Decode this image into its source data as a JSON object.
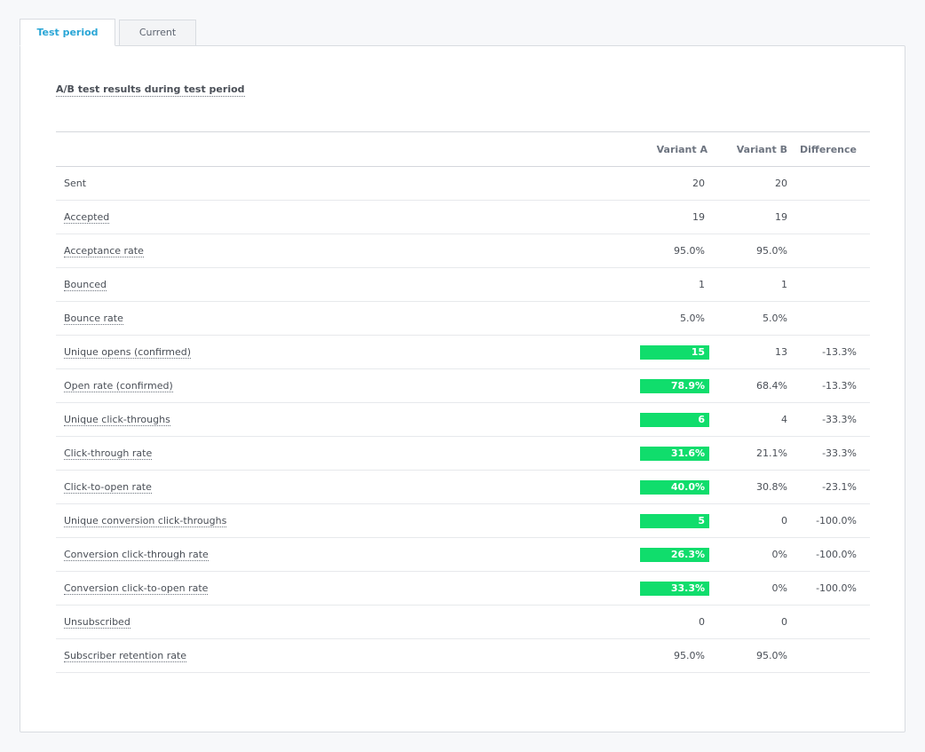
{
  "tabs": [
    {
      "label": "Test period",
      "active": true
    },
    {
      "label": "Current",
      "active": false
    }
  ],
  "section_title": "A/B test results during test period",
  "table": {
    "headers": {
      "metric": "",
      "variant_a": "Variant A",
      "variant_b": "Variant B",
      "difference": "Difference"
    },
    "rows": [
      {
        "label": "Sent",
        "a": "20",
        "b": "20",
        "diff": "",
        "a_winner": false,
        "underlined": false
      },
      {
        "label": "Accepted",
        "a": "19",
        "b": "19",
        "diff": "",
        "a_winner": false,
        "underlined": true
      },
      {
        "label": "Acceptance rate",
        "a": "95.0%",
        "b": "95.0%",
        "diff": "",
        "a_winner": false,
        "underlined": true
      },
      {
        "label": "Bounced",
        "a": "1",
        "b": "1",
        "diff": "",
        "a_winner": false,
        "underlined": true
      },
      {
        "label": "Bounce rate",
        "a": "5.0%",
        "b": "5.0%",
        "diff": "",
        "a_winner": false,
        "underlined": true
      },
      {
        "label": "Unique opens (confirmed)",
        "a": "15",
        "b": "13",
        "diff": "-13.3%",
        "a_winner": true,
        "underlined": true
      },
      {
        "label": "Open rate (confirmed)",
        "a": "78.9%",
        "b": "68.4%",
        "diff": "-13.3%",
        "a_winner": true,
        "underlined": true
      },
      {
        "label": "Unique click-throughs",
        "a": "6",
        "b": "4",
        "diff": "-33.3%",
        "a_winner": true,
        "underlined": true
      },
      {
        "label": "Click-through rate",
        "a": "31.6%",
        "b": "21.1%",
        "diff": "-33.3%",
        "a_winner": true,
        "underlined": true
      },
      {
        "label": "Click-to-open rate",
        "a": "40.0%",
        "b": "30.8%",
        "diff": "-23.1%",
        "a_winner": true,
        "underlined": true
      },
      {
        "label": "Unique conversion click-throughs",
        "a": "5",
        "b": "0",
        "diff": "-100.0%",
        "a_winner": true,
        "underlined": true
      },
      {
        "label": "Conversion click-through rate",
        "a": "26.3%",
        "b": "0%",
        "diff": "-100.0%",
        "a_winner": true,
        "underlined": true
      },
      {
        "label": "Conversion click-to-open rate",
        "a": "33.3%",
        "b": "0%",
        "diff": "-100.0%",
        "a_winner": true,
        "underlined": true
      },
      {
        "label": "Unsubscribed",
        "a": "0",
        "b": "0",
        "diff": "",
        "a_winner": false,
        "underlined": true
      },
      {
        "label": "Subscriber retention rate",
        "a": "95.0%",
        "b": "95.0%",
        "diff": "",
        "a_winner": false,
        "underlined": true
      }
    ]
  },
  "colors": {
    "winner_highlight": "#10dd6c",
    "active_tab": "#2aa6d6",
    "background": "#f7f8fa"
  }
}
